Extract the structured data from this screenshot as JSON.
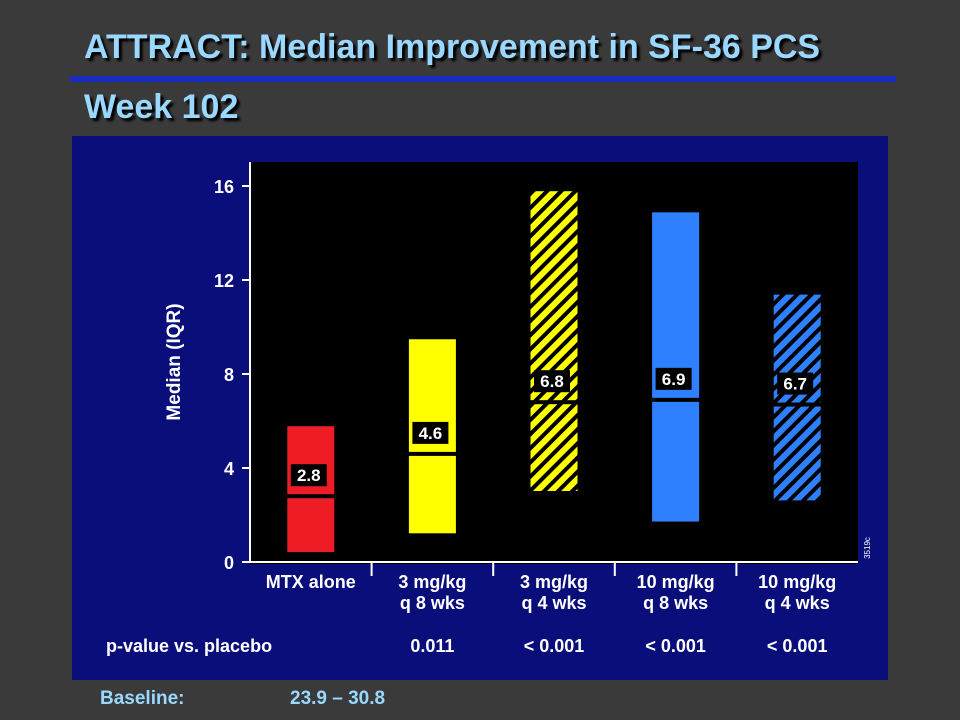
{
  "slide": {
    "title": "ATTRACT: Median Improvement in SF-36 PCS",
    "subtitle": "Week 102"
  },
  "colors": {
    "background": "#3a3a3a",
    "title": "#9ad8ff",
    "panel": "#0a0e7a",
    "plot_area": "#000000"
  },
  "chart_data": {
    "type": "bar",
    "subtype": "floating range (IQR) with median line",
    "ylabel": "Median (IQR)",
    "ylim": [
      0,
      17
    ],
    "yticks": [
      0,
      4,
      8,
      12,
      16
    ],
    "grid": false,
    "categories": [
      [
        "MTX alone"
      ],
      [
        "3 mg/kg",
        "q 8 wks"
      ],
      [
        "3 mg/kg",
        "q 4 wks"
      ],
      [
        "10 mg/kg",
        "q 8 wks"
      ],
      [
        "10 mg/kg",
        "q 4 wks"
      ]
    ],
    "series": [
      {
        "iqr_low": [
          0.4,
          1.2,
          3.0,
          1.7,
          2.6
        ],
        "iqr_high": [
          5.8,
          9.5,
          15.8,
          14.9,
          11.4
        ],
        "median": [
          2.8,
          4.6,
          6.8,
          6.9,
          6.7
        ],
        "median_labels": [
          "2.8",
          "4.6",
          "6.8",
          "6.9",
          "6.7"
        ],
        "fill": [
          "solid",
          "solid",
          "hatched",
          "solid",
          "hatched"
        ],
        "colors": [
          "#ee1c25",
          "#ffff00",
          "#ffff00",
          "#2f80ff",
          "#2f80ff"
        ]
      }
    ],
    "pvalue_label": "p-value vs. placebo",
    "pvalues": [
      "",
      "0.011",
      "< 0.001",
      "< 0.001",
      "< 0.001"
    ],
    "side_code": "3519c"
  },
  "baseline": {
    "label": "Baseline:",
    "value": "23.9 – 30.8"
  }
}
